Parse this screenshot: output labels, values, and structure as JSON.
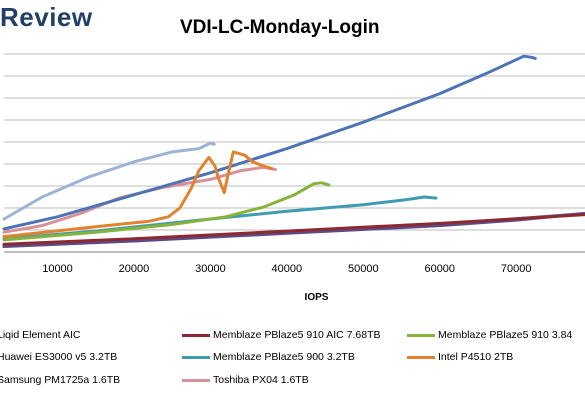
{
  "header": {
    "brand": "Review",
    "title": "VDI-LC-Monday-Login"
  },
  "colors": {
    "brand": "#233f66",
    "grid": "#a6a6a6",
    "axis": "#7f7f7f"
  },
  "chart_data": {
    "type": "line",
    "title": "VDI-LC-Monday-Login",
    "xlabel": "IOPS",
    "ylabel": "",
    "xlim": [
      3000,
      79000
    ],
    "ylim": [
      0,
      9
    ],
    "x_ticks": [
      "10000",
      "20000",
      "30000",
      "40000",
      "50000",
      "60000",
      "70000"
    ],
    "y_gridlines": [
      1,
      2,
      3,
      4,
      5,
      6,
      7,
      8,
      9
    ],
    "grid": true,
    "legend_position": "bottom",
    "series": [
      {
        "name": "Liqid Element AIC",
        "color": "#4d6ea8",
        "points": [
          [
            3000,
            0.3
          ],
          [
            20000,
            0.55
          ],
          [
            40000,
            0.9
          ],
          [
            60000,
            1.25
          ],
          [
            79000,
            1.75
          ]
        ]
      },
      {
        "name": "Memblaze PBlaze5 910 AIC 7.68TB",
        "color": "#8e2a2f",
        "points": [
          [
            3000,
            0.35
          ],
          [
            20000,
            0.6
          ],
          [
            40000,
            0.95
          ],
          [
            60000,
            1.3
          ],
          [
            79000,
            1.7
          ]
        ]
      },
      {
        "name": "Memblaze PBlaze5 910 3.84",
        "color": "#86b33b",
        "points": [
          [
            3000,
            0.55
          ],
          [
            15000,
            0.9
          ],
          [
            25000,
            1.25
          ],
          [
            32000,
            1.6
          ],
          [
            37000,
            2.05
          ],
          [
            41000,
            2.6
          ],
          [
            43500,
            3.1
          ],
          [
            44500,
            3.15
          ],
          [
            45500,
            3.05
          ]
        ]
      },
      {
        "name": "Huawei ES3000 v5 3.2TB",
        "color": "#5b4a8a",
        "points": [
          [
            3000,
            0.25
          ],
          [
            20000,
            0.5
          ],
          [
            40000,
            0.85
          ],
          [
            60000,
            1.2
          ],
          [
            70000,
            1.45
          ],
          [
            79000,
            1.75
          ]
        ]
      },
      {
        "name": "Memblaze PBlaze5 900 3.2TB",
        "color": "#3e9bb0",
        "points": [
          [
            3000,
            0.6
          ],
          [
            15000,
            0.95
          ],
          [
            30000,
            1.5
          ],
          [
            40000,
            1.85
          ],
          [
            50000,
            2.15
          ],
          [
            55000,
            2.35
          ],
          [
            58000,
            2.5
          ],
          [
            59500,
            2.45
          ]
        ]
      },
      {
        "name": "Intel P4510 2TB",
        "color": "#e0822e",
        "points": [
          [
            3000,
            0.7
          ],
          [
            15000,
            1.15
          ],
          [
            22000,
            1.4
          ],
          [
            24500,
            1.6
          ],
          [
            26000,
            2.0
          ],
          [
            27500,
            2.9
          ],
          [
            28500,
            3.7
          ],
          [
            29800,
            4.3
          ],
          [
            30600,
            3.9
          ],
          [
            31000,
            3.4
          ],
          [
            31800,
            2.7
          ],
          [
            32300,
            3.5
          ],
          [
            33000,
            4.55
          ],
          [
            34500,
            4.4
          ],
          [
            35500,
            4.1
          ],
          [
            37000,
            3.9
          ],
          [
            38000,
            3.8
          ]
        ]
      },
      {
        "name": "Samsung PM1725a 1.6TB",
        "color": "#4d74b4",
        "points": [
          [
            3000,
            1.05
          ],
          [
            10000,
            1.6
          ],
          [
            20000,
            2.6
          ],
          [
            30000,
            3.6
          ],
          [
            40000,
            4.7
          ],
          [
            50000,
            5.9
          ],
          [
            60000,
            7.2
          ],
          [
            66000,
            8.1
          ],
          [
            71000,
            8.9
          ],
          [
            72000,
            8.85
          ],
          [
            72500,
            8.8
          ]
        ]
      },
      {
        "name": "Toshiba PX04 1.6TB",
        "color": "#d99096",
        "points": [
          [
            3000,
            0.9
          ],
          [
            8000,
            1.2
          ],
          [
            13000,
            1.75
          ],
          [
            18000,
            2.45
          ],
          [
            24000,
            2.95
          ],
          [
            30000,
            3.3
          ],
          [
            34000,
            3.7
          ],
          [
            37000,
            3.85
          ],
          [
            38500,
            3.75
          ]
        ]
      },
      {
        "name": "",
        "color": "#9db3d6",
        "points": [
          [
            3000,
            1.5
          ],
          [
            8000,
            2.5
          ],
          [
            14000,
            3.4
          ],
          [
            20000,
            4.1
          ],
          [
            25000,
            4.55
          ],
          [
            28500,
            4.7
          ],
          [
            30000,
            4.95
          ],
          [
            30500,
            4.9
          ]
        ]
      }
    ]
  },
  "legend": [
    {
      "label": "Liqid Element AIC",
      "color": "#4d6ea8"
    },
    {
      "label": "Memblaze PBlaze5 910 AIC 7.68TB",
      "color": "#8e2a2f"
    },
    {
      "label": "Memblaze PBlaze5 910 3.84",
      "color": "#86b33b"
    },
    {
      "label": "Huawei ES3000 v5 3.2TB",
      "color": "#5b4a8a"
    },
    {
      "label": "Memblaze PBlaze5 900 3.2TB",
      "color": "#3e9bb0"
    },
    {
      "label": "Intel P4510 2TB",
      "color": "#e0822e"
    },
    {
      "label": "Samsung PM1725a 1.6TB",
      "color": "#4d74b4"
    },
    {
      "label": "Toshiba PX04 1.6TB",
      "color": "#d99096"
    }
  ]
}
